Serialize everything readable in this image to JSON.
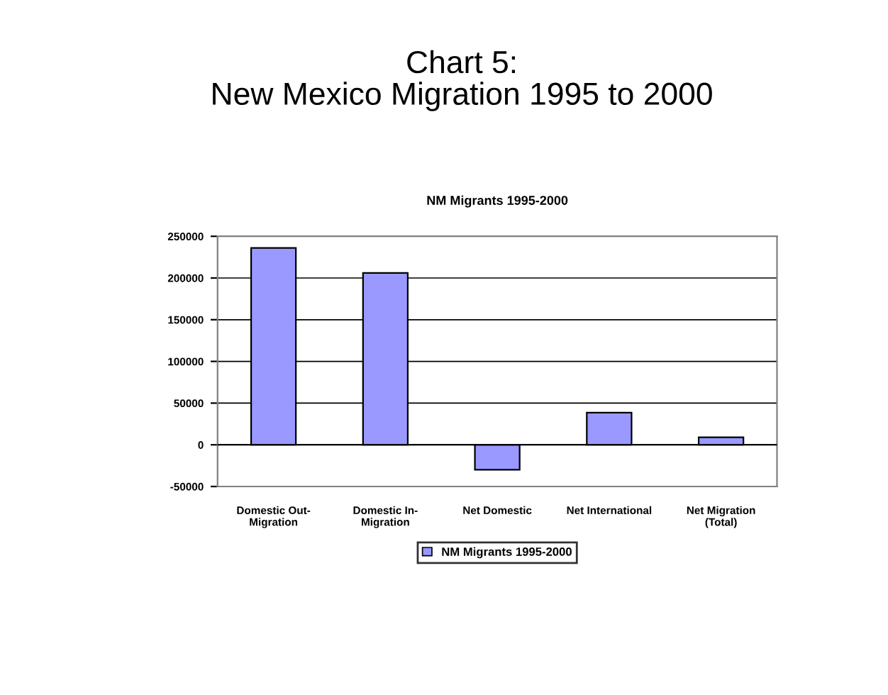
{
  "chart_data": {
    "type": "bar",
    "title": "Chart 5:\nNew Mexico Migration 1995 to 2000",
    "subtitle": "NM Migrants 1995-2000",
    "categories": [
      "Domestic Out-\nMigration",
      "Domestic In-\nMigration",
      "Net Domestic",
      "Net International",
      "Net Migration\n(Total)"
    ],
    "series": [
      {
        "name": "NM Migrants 1995-2000",
        "color": "#9999ff",
        "values": [
          236000,
          206000,
          -30000,
          38500,
          9000
        ]
      }
    ],
    "ylim": [
      -50000,
      250000
    ],
    "yticks": [
      -50000,
      0,
      50000,
      100000,
      150000,
      200000,
      250000
    ],
    "grid": "y",
    "legend": "bottom"
  }
}
